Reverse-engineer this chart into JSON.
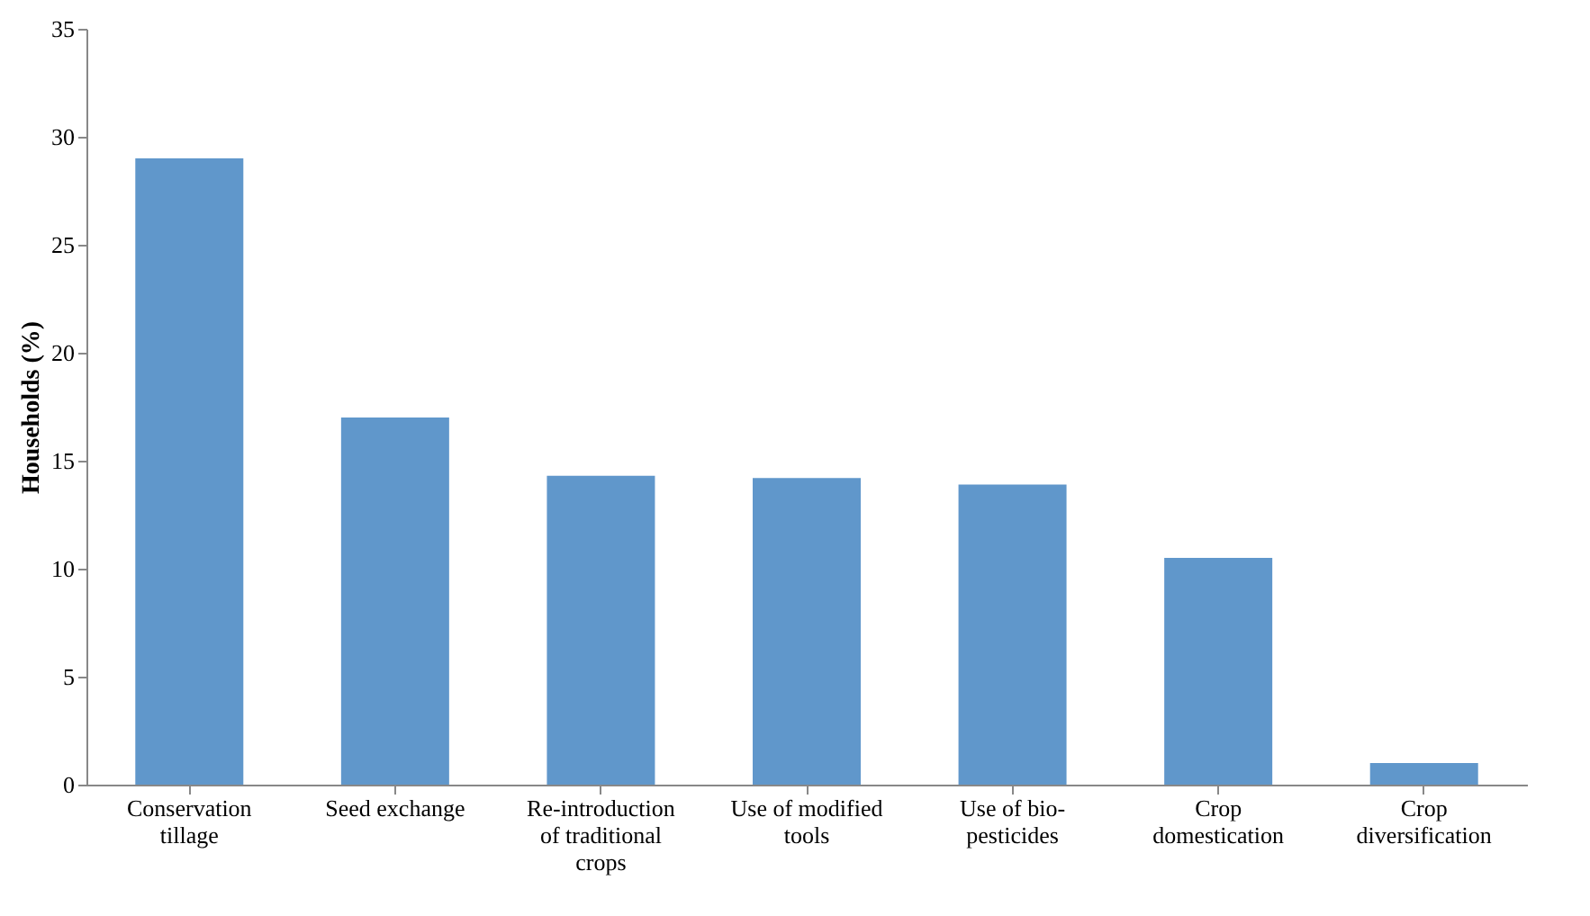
{
  "chart_data": {
    "type": "bar",
    "ylabel": "Households  (%)",
    "categories": [
      "Conservation\ntillage",
      "Seed exchange",
      "Re-introduction\nof traditional\ncrops",
      "Use of modified\ntools",
      "Use of bio-\npesticides",
      "Crop\ndomestication",
      "Crop\ndiversification"
    ],
    "values": [
      29,
      17,
      14.3,
      14.2,
      13.9,
      10.5,
      1
    ],
    "color": "#6097cb",
    "ylim": [
      0,
      35
    ],
    "yticks": [
      0,
      5,
      10,
      15,
      20,
      25,
      30,
      35
    ],
    "grid": false
  }
}
